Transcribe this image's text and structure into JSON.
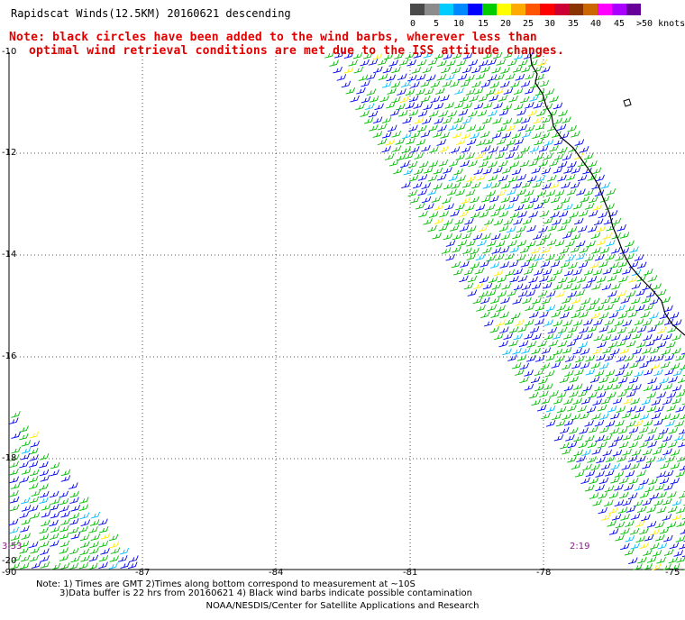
{
  "title": "Rapidscat Winds(12.5KM) 20160621 descending",
  "note_line1": "Note: black circles have been added to the wind barbs, wherever less than",
  "note_line2": "optimal wind retrieval conditions are met due to the ISS attitude changes.",
  "legend": {
    "labels": [
      "0",
      "5",
      "10",
      "15",
      "20",
      "25",
      "30",
      "35",
      "40",
      "45",
      ">50 knots"
    ],
    "colors": [
      "#4a4a4a",
      "#8c8c8c",
      "#00ccff",
      "#0088ff",
      "#0000ff",
      "#00cc00",
      "#ffff00",
      "#ffaa00",
      "#ff5500",
      "#ff0000",
      "#cc0033",
      "#883300",
      "#cc6600",
      "#ff00ff",
      "#aa00ff",
      "#660099"
    ]
  },
  "axes": {
    "lat_labels": [
      "-10",
      "-12",
      "-14",
      "-16",
      "-18",
      "-20"
    ],
    "lon_labels": [
      "-90",
      "-87",
      "-84",
      "-81",
      "-78",
      "-75"
    ]
  },
  "times": {
    "left": "3:53",
    "right": "2:19"
  },
  "footer": {
    "line1": "Note: 1) Times are GMT 2)Times along bottom correspond to measurement at ~10S",
    "line2": "3)Data buffer is 22 hrs from 20160621 4) Black wind barbs indicate possible contamination",
    "line3": "NOAA/NESDIS/Center for Satellite Applications and Research"
  },
  "colors": {
    "green": "#00bb00",
    "blue": "#0000ee",
    "cyan": "#00bbff",
    "yellow": "#ffee00",
    "coast": "#000000",
    "grid": "#555555"
  }
}
